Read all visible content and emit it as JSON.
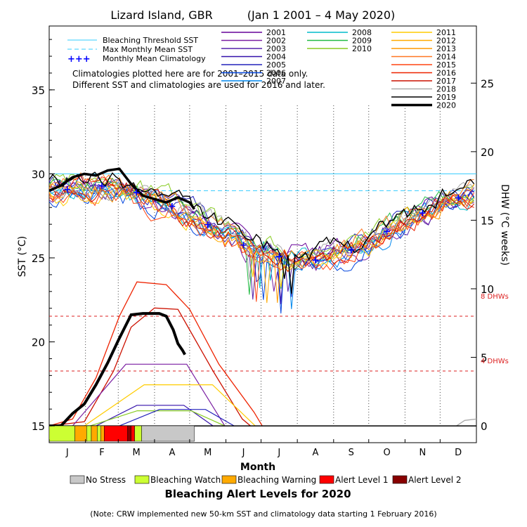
{
  "chart_data": {
    "type": "line",
    "title": "Lizard Island, GBR",
    "date_range": "(Jan 1 2001 – 4 May 2020)",
    "xlabel": "Month",
    "ylabel_left": "SST (°C)",
    "ylabel_right": "DHW (°C weeks)",
    "x_ticks": [
      "J",
      "F",
      "M",
      "A",
      "M",
      "J",
      "J",
      "A",
      "S",
      "O",
      "N",
      "D"
    ],
    "y_left_ticks": [
      15,
      20,
      25,
      30,
      35
    ],
    "y_right_ticks": [
      0,
      5,
      10,
      15,
      20,
      25
    ],
    "ylim_left": [
      14,
      38.8
    ],
    "ylim_right": [
      0,
      25
    ],
    "bleaching_threshold_sst": 30.0,
    "max_monthly_mean_sst": 29.0,
    "dhw_thresholds": [
      {
        "label": "8 DHWs",
        "value": 8
      },
      {
        "label": "4 DHWs",
        "value": 4
      }
    ],
    "legend_lines": [
      {
        "label": "Bleaching Threshold SST",
        "color": "#33ccff",
        "style": "solid"
      },
      {
        "label": "Max Monthly Mean SST",
        "color": "#33ccff",
        "style": "dashed"
      },
      {
        "label": "Monthly Mean Climatology",
        "color": "#0000ff",
        "style": "plus"
      }
    ],
    "note_lines": [
      "Climatologies plotted here are for 2001–2015 data only.",
      "Different SST and climatologies are used for 2016 and later."
    ],
    "monthly_mean_climatology": [
      29.1,
      29.3,
      28.9,
      28.1,
      27.0,
      25.8,
      25.1,
      24.9,
      25.5,
      26.6,
      27.7,
      28.6
    ],
    "years": [
      {
        "name": "2001",
        "color": "#660099"
      },
      {
        "name": "2002",
        "color": "#7a1fa2"
      },
      {
        "name": "2003",
        "color": "#5522aa"
      },
      {
        "name": "2004",
        "color": "#3311aa"
      },
      {
        "name": "2005",
        "color": "#2222bb"
      },
      {
        "name": "2006",
        "color": "#0044dd"
      },
      {
        "name": "2007",
        "color": "#0088ee"
      },
      {
        "name": "2008",
        "color": "#00bbcc"
      },
      {
        "name": "2009",
        "color": "#22bb44"
      },
      {
        "name": "2010",
        "color": "#88cc22"
      },
      {
        "name": "2011",
        "color": "#ffcc00"
      },
      {
        "name": "2012",
        "color": "#ffaa00"
      },
      {
        "name": "2013",
        "color": "#ff9900"
      },
      {
        "name": "2014",
        "color": "#ff7722"
      },
      {
        "name": "2015",
        "color": "#ff4411"
      },
      {
        "name": "2016",
        "color": "#ee2200"
      },
      {
        "name": "2017",
        "color": "#cc1100"
      },
      {
        "name": "2018",
        "color": "#aaaaaa"
      },
      {
        "name": "2019",
        "color": "#000000"
      },
      {
        "name": "2020",
        "color": "#000000",
        "bold": true
      }
    ],
    "sst_2020": {
      "day": [
        0,
        10,
        20,
        30,
        40,
        50,
        60,
        70,
        80,
        90,
        100,
        110,
        120,
        124
      ],
      "value": [
        29.0,
        29.3,
        29.8,
        30.0,
        29.9,
        30.2,
        30.3,
        29.4,
        28.7,
        28.5,
        28.3,
        28.6,
        28.3,
        27.9
      ]
    },
    "dhw_2020": {
      "day": [
        0,
        10,
        20,
        30,
        40,
        50,
        60,
        70,
        80,
        86,
        94,
        100,
        106,
        110,
        114,
        116
      ],
      "value": [
        0,
        0,
        0.9,
        1.6,
        3.0,
        4.6,
        6.4,
        8.1,
        8.2,
        8.2,
        8.2,
        8.0,
        7.0,
        6.0,
        5.5,
        5.2
      ]
    },
    "dhw_2016": {
      "day": [
        0,
        20,
        40,
        60,
        75,
        100,
        120,
        145,
        175,
        182
      ],
      "value": [
        0,
        0.5,
        3.5,
        8.0,
        10.5,
        10.3,
        8.5,
        4.5,
        1.0,
        0
      ]
    },
    "dhw_2017": {
      "day": [
        0,
        30,
        55,
        70,
        90,
        110,
        120,
        140,
        165,
        172
      ],
      "value": [
        0,
        0.3,
        4.0,
        7.2,
        8.6,
        8.5,
        7.0,
        4.0,
        0.5,
        0
      ]
    },
    "dhw_small_years": [
      {
        "name": "2002",
        "peak": 4.5,
        "start": 20,
        "end": 150
      },
      {
        "name": "2011",
        "peak": 3.0,
        "start": 30,
        "end": 176
      },
      {
        "name": "2004",
        "peak": 1.5,
        "start": 40,
        "end": 140
      },
      {
        "name": "2010",
        "peak": 1.1,
        "start": 35,
        "end": 150
      },
      {
        "name": "2005",
        "peak": 1.2,
        "start": 60,
        "end": 158
      }
    ],
    "dhw_2018": {
      "day": [
        348,
        355,
        365
      ],
      "value": [
        0,
        0.4,
        0.5
      ]
    }
  },
  "alert_bar": {
    "segments": [
      {
        "start_day": 0,
        "end_day": 22,
        "level": "Bleaching Watch"
      },
      {
        "start_day": 22,
        "end_day": 32,
        "level": "Bleaching Warning"
      },
      {
        "start_day": 32,
        "end_day": 36,
        "level": "Bleaching Watch"
      },
      {
        "start_day": 36,
        "end_day": 41,
        "level": "Bleaching Warning"
      },
      {
        "start_day": 41,
        "end_day": 44,
        "level": "Bleaching Watch"
      },
      {
        "start_day": 44,
        "end_day": 47,
        "level": "Bleaching Warning"
      },
      {
        "start_day": 47,
        "end_day": 67,
        "level": "Alert Level 1"
      },
      {
        "start_day": 67,
        "end_day": 70,
        "level": "Alert Level 2"
      },
      {
        "start_day": 70,
        "end_day": 73,
        "level": "Alert Level 1"
      },
      {
        "start_day": 73,
        "end_day": 79,
        "level": "Bleaching Watch"
      },
      {
        "start_day": 79,
        "end_day": 124,
        "level": "No Stress"
      }
    ]
  },
  "alert_legend": {
    "items": [
      {
        "label": "No Stress",
        "color": "#c8c8c8"
      },
      {
        "label": "Bleaching Watch",
        "color": "#ccff33"
      },
      {
        "label": "Bleaching Warning",
        "color": "#ffaa00"
      },
      {
        "label": "Alert Level 1",
        "color": "#ff0000"
      },
      {
        "label": "Alert Level 2",
        "color": "#880000"
      }
    ],
    "title": "Bleaching Alert Levels for 2020"
  },
  "footnote": "(Note: CRW implemented new 50-km SST and climatology data starting 1 February 2016)",
  "colors": {
    "threshold": "#33ccff",
    "climatology": "#0000ff",
    "dhw_threshold": "#dd2222",
    "grid": "#555555"
  }
}
